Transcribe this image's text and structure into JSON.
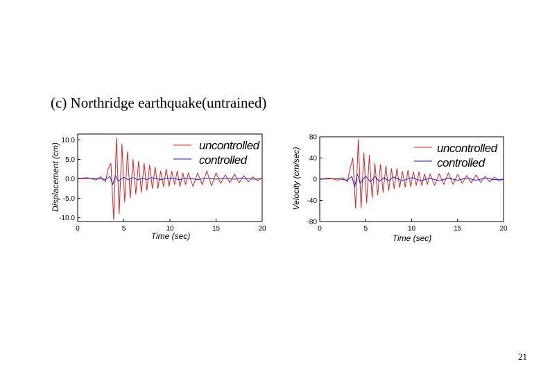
{
  "slide": {
    "caption": "(c) Northridge earthquake(untrained)",
    "page_number": "21"
  },
  "colors": {
    "uncontrolled": "#e02020",
    "controlled": "#1a1acc"
  },
  "chart_data": [
    {
      "type": "line",
      "xlabel": "Time (sec)",
      "ylabel": "Displacement (cm)",
      "xlim": [
        0,
        20
      ],
      "ylim": [
        -11,
        11.5
      ],
      "xticks": [
        "0",
        "5",
        "10",
        "15",
        "20"
      ],
      "yticks": [
        "10.0",
        "5.0",
        "0.0",
        "-5.0",
        "-10.0"
      ],
      "legend": [
        "uncontrolled",
        "controlled"
      ],
      "legend_position": "top-right",
      "series": [
        {
          "name": "uncontrolled",
          "x": [
            0,
            1,
            2,
            2.5,
            3,
            3.3,
            3.6,
            3.9,
            4.2,
            4.5,
            4.8,
            5.1,
            5.4,
            5.7,
            6,
            6.3,
            6.6,
            6.9,
            7.2,
            7.5,
            7.8,
            8.1,
            8.4,
            8.7,
            9,
            9.3,
            9.6,
            9.9,
            10.2,
            10.5,
            10.8,
            11.1,
            11.4,
            11.7,
            12,
            12.5,
            13,
            13.5,
            14,
            14.5,
            15,
            15.5,
            16,
            16.5,
            17,
            17.5,
            18,
            18.5,
            19,
            19.5,
            20
          ],
          "y": [
            0,
            0.3,
            -0.3,
            0.5,
            -0.8,
            2.5,
            4,
            -10.5,
            10.5,
            -9,
            9,
            -6,
            7,
            -5,
            5,
            -4,
            4.5,
            -3.5,
            4,
            -3,
            3.5,
            -2.5,
            3,
            -2.5,
            2,
            -2,
            2.5,
            -2,
            2,
            -1.5,
            2,
            -2,
            1.5,
            -1.5,
            1.5,
            -2,
            1.5,
            -1.5,
            2,
            -1.8,
            1.5,
            -1.2,
            1,
            -1,
            1.2,
            -1,
            0.8,
            -0.8,
            0.5,
            -0.5,
            0.2
          ]
        },
        {
          "name": "controlled",
          "x": [
            0,
            2,
            3,
            3.5,
            3.8,
            4.1,
            4.4,
            5,
            5.5,
            6,
            6.5,
            7,
            7.5,
            8,
            9,
            10,
            11,
            12,
            13,
            14,
            15,
            16,
            17,
            18,
            19,
            20
          ],
          "y": [
            0,
            0.1,
            -0.2,
            0.6,
            -1.5,
            0.8,
            -0.6,
            0.4,
            -0.3,
            0.3,
            -0.3,
            0.2,
            -0.2,
            0.3,
            -0.2,
            0.2,
            -0.2,
            0.1,
            -0.2,
            0.1,
            -0.1,
            0.1,
            -0.1,
            0.1,
            -0.1,
            0
          ]
        }
      ]
    },
    {
      "type": "line",
      "xlabel": "Time (sec)",
      "ylabel": "Velocity (cm/sec)",
      "xlim": [
        0,
        20
      ],
      "ylim": [
        -80,
        80
      ],
      "xticks": [
        "0",
        "5",
        "10",
        "15",
        "20"
      ],
      "yticks": [
        "80",
        "40",
        "0",
        "-40",
        "-80"
      ],
      "legend": [
        "uncontrolled",
        "controlled"
      ],
      "legend_position": "top-right",
      "series": [
        {
          "name": "uncontrolled",
          "x": [
            0,
            1,
            2,
            2.5,
            3,
            3.3,
            3.6,
            3.9,
            4.2,
            4.5,
            4.8,
            5.1,
            5.4,
            5.7,
            6,
            6.3,
            6.6,
            6.9,
            7.2,
            7.5,
            7.8,
            8.1,
            8.4,
            8.7,
            9,
            9.3,
            9.6,
            9.9,
            10.2,
            10.5,
            10.8,
            11.1,
            11.4,
            11.7,
            12,
            12.5,
            13,
            13.5,
            14,
            14.5,
            15,
            15.5,
            16,
            16.5,
            17,
            17.5,
            18,
            18.5,
            19,
            19.5,
            20
          ],
          "y": [
            0,
            2,
            -2,
            3,
            -5,
            20,
            40,
            -55,
            75,
            -55,
            50,
            -45,
            45,
            -35,
            30,
            -30,
            28,
            -25,
            25,
            -22,
            20,
            -18,
            20,
            -16,
            15,
            -15,
            17,
            -14,
            14,
            -12,
            14,
            -12,
            10,
            -10,
            10,
            -12,
            10,
            -10,
            12,
            -10,
            9,
            -8,
            7,
            -7,
            8,
            -6,
            5,
            -5,
            4,
            -3,
            0
          ]
        },
        {
          "name": "controlled",
          "x": [
            0,
            2,
            3,
            3.5,
            3.8,
            4.1,
            4.4,
            5,
            5.5,
            6,
            6.5,
            7,
            7.5,
            8,
            9,
            10,
            11,
            12,
            13,
            14,
            15,
            16,
            17,
            18,
            19,
            20
          ],
          "y": [
            0,
            1,
            -2,
            5,
            -15,
            10,
            -8,
            6,
            -5,
            5,
            -4,
            3,
            -3,
            4,
            -3,
            3,
            -3,
            2,
            -3,
            2,
            -2,
            2,
            -2,
            2,
            -1,
            0
          ]
        }
      ]
    }
  ]
}
